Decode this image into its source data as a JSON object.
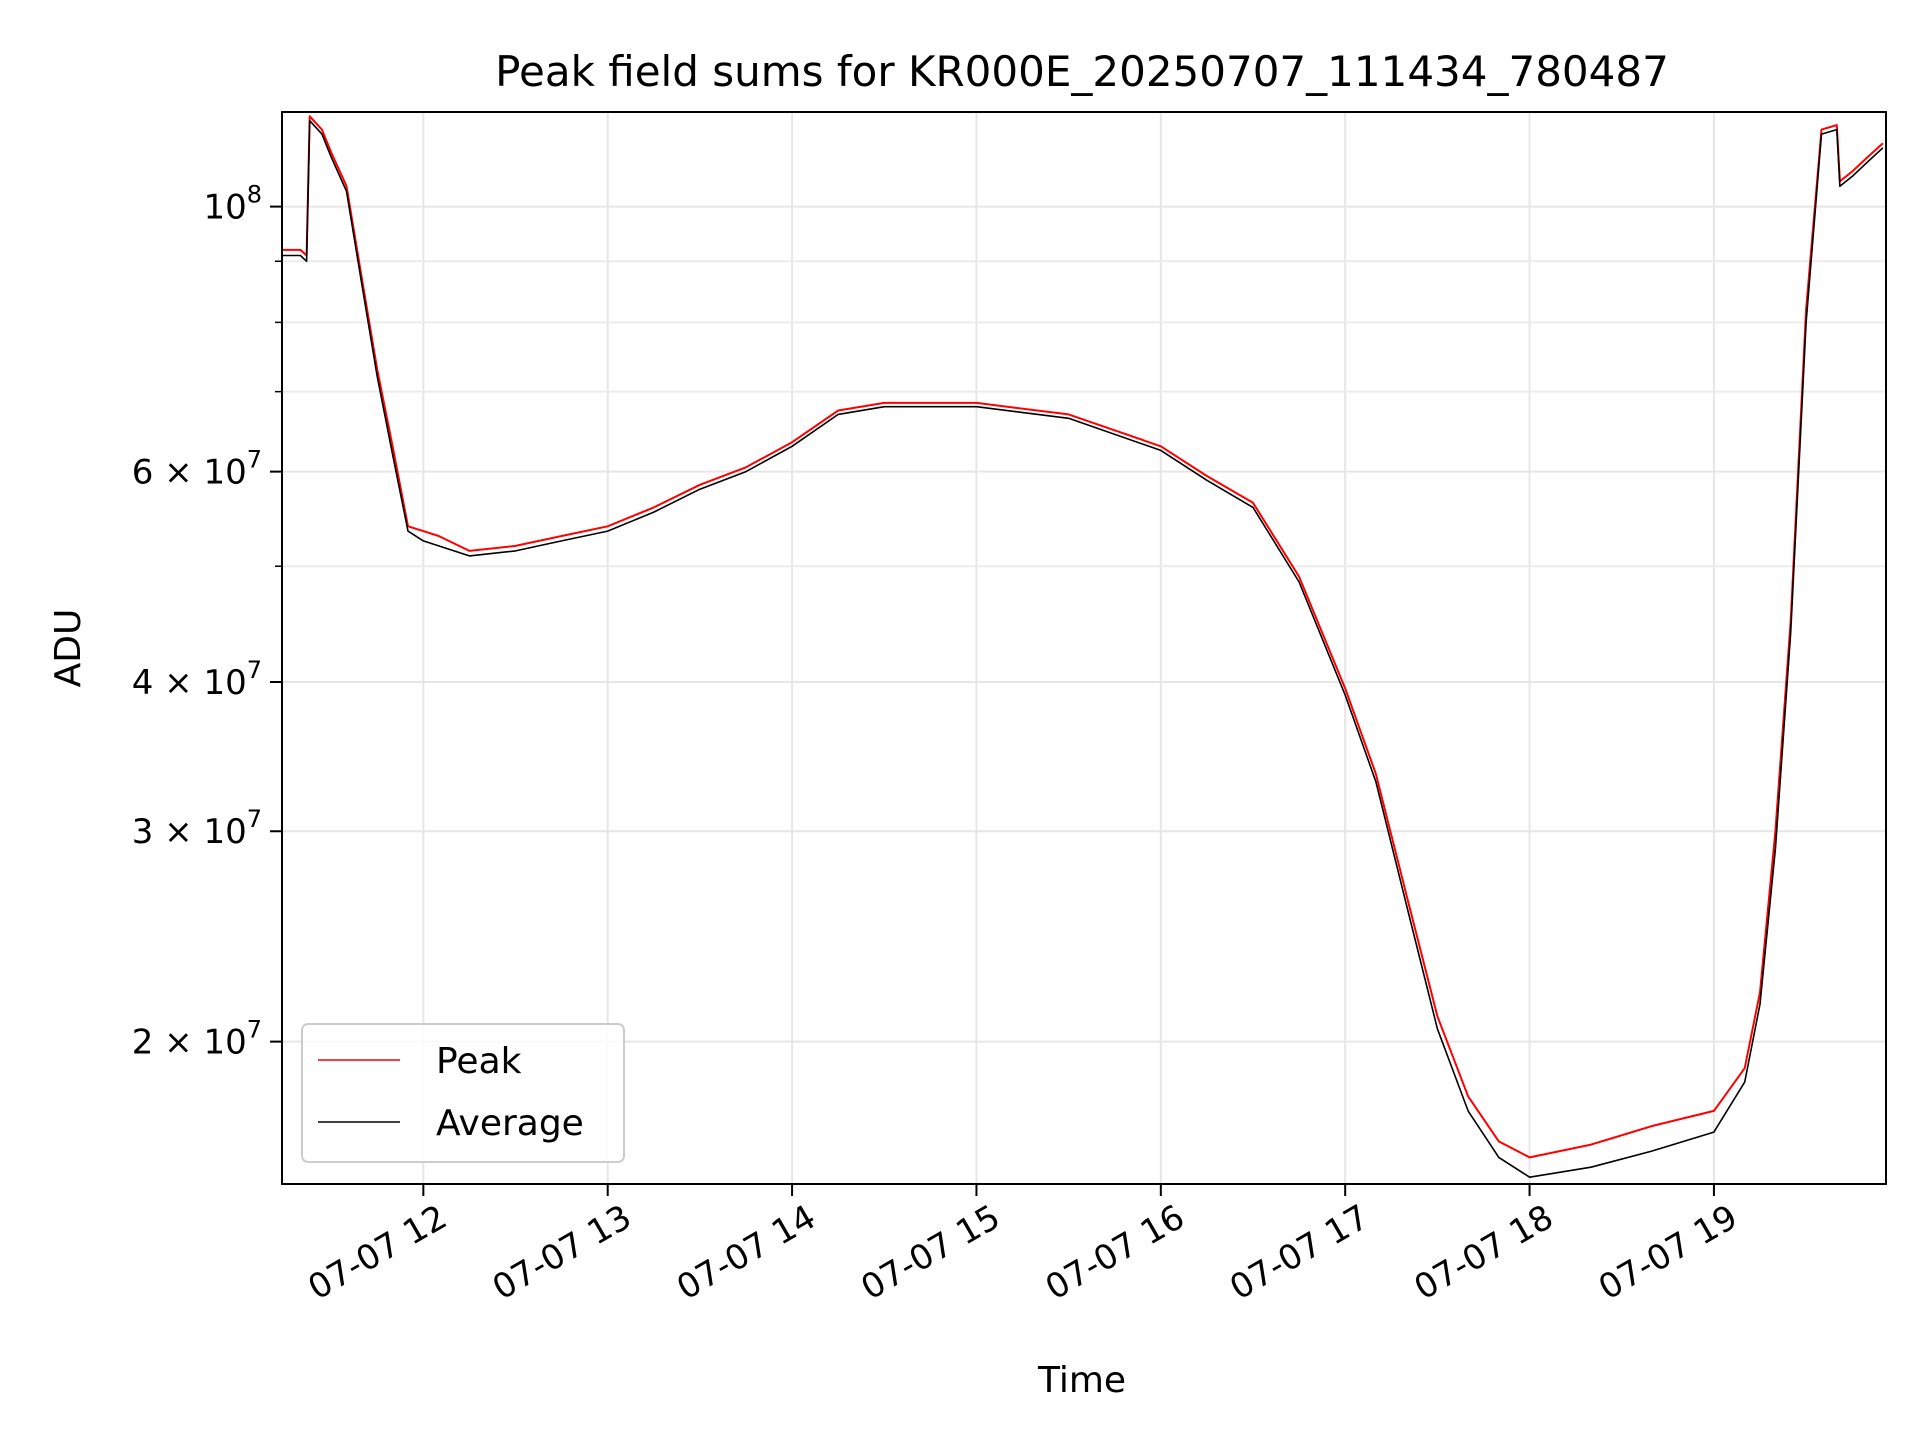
{
  "chart_data": {
    "type": "line",
    "title": "Peak field sums for KR000E_20250707_111434_780487",
    "xlabel": "Time",
    "ylabel": "ADU",
    "yscale": "log",
    "ylim": [
      15200000,
      120000000
    ],
    "xlim": [
      "2025-07-07 11:14",
      "2025-07-07 19:56"
    ],
    "grid": true,
    "legend_position": "lower left",
    "x_ticks": [
      {
        "value": "2025-07-07 12:00",
        "label": "07-07 12"
      },
      {
        "value": "2025-07-07 13:00",
        "label": "07-07 13"
      },
      {
        "value": "2025-07-07 14:00",
        "label": "07-07 14"
      },
      {
        "value": "2025-07-07 15:00",
        "label": "07-07 15"
      },
      {
        "value": "2025-07-07 16:00",
        "label": "07-07 16"
      },
      {
        "value": "2025-07-07 17:00",
        "label": "07-07 17"
      },
      {
        "value": "2025-07-07 18:00",
        "label": "07-07 18"
      },
      {
        "value": "2025-07-07 19:00",
        "label": "07-07 19"
      }
    ],
    "y_ticks": [
      {
        "value": 100000000,
        "base": "10",
        "exp": "8"
      },
      {
        "value": 60000000,
        "base": "6 × 10",
        "exp": "7"
      },
      {
        "value": 40000000,
        "base": "4 × 10",
        "exp": "7"
      },
      {
        "value": 30000000,
        "base": "3 × 10",
        "exp": "7"
      },
      {
        "value": 20000000,
        "base": "2 × 10",
        "exp": "7"
      }
    ],
    "y_minor_ticks": [
      50000000,
      70000000,
      80000000,
      90000000
    ],
    "series": [
      {
        "name": "Peak",
        "color": "#ff0000",
        "x": [
          "2025-07-07 11:14",
          "2025-07-07 11:20",
          "2025-07-07 11:22",
          "2025-07-07 11:23",
          "2025-07-07 11:27",
          "2025-07-07 11:30",
          "2025-07-07 11:35",
          "2025-07-07 11:40",
          "2025-07-07 11:45",
          "2025-07-07 11:50",
          "2025-07-07 11:55",
          "2025-07-07 12:00",
          "2025-07-07 12:05",
          "2025-07-07 12:15",
          "2025-07-07 12:30",
          "2025-07-07 12:45",
          "2025-07-07 13:00",
          "2025-07-07 13:15",
          "2025-07-07 13:30",
          "2025-07-07 13:45",
          "2025-07-07 14:00",
          "2025-07-07 14:15",
          "2025-07-07 14:30",
          "2025-07-07 15:00",
          "2025-07-07 15:30",
          "2025-07-07 16:00",
          "2025-07-07 16:15",
          "2025-07-07 16:30",
          "2025-07-07 16:45",
          "2025-07-07 17:00",
          "2025-07-07 17:10",
          "2025-07-07 17:20",
          "2025-07-07 17:30",
          "2025-07-07 17:40",
          "2025-07-07 17:50",
          "2025-07-07 18:00",
          "2025-07-07 18:20",
          "2025-07-07 18:40",
          "2025-07-07 19:00",
          "2025-07-07 19:10",
          "2025-07-07 19:15",
          "2025-07-07 19:20",
          "2025-07-07 19:25",
          "2025-07-07 19:30",
          "2025-07-07 19:35",
          "2025-07-07 19:40",
          "2025-07-07 19:41",
          "2025-07-07 19:45",
          "2025-07-07 19:50",
          "2025-07-07 19:55"
        ],
        "y": [
          92000000,
          92000000,
          91000000,
          119000000,
          116000000,
          111000000,
          104000000,
          87000000,
          73000000,
          63000000,
          54000000,
          53500000,
          53000000,
          51500000,
          52000000,
          53000000,
          54000000,
          56000000,
          58500000,
          60500000,
          63500000,
          67500000,
          68500000,
          68500000,
          67000000,
          63000000,
          59500000,
          56500000,
          49000000,
          39500000,
          33500000,
          26500000,
          21000000,
          18000000,
          16500000,
          16000000,
          16400000,
          17000000,
          17500000,
          19000000,
          22000000,
          30000000,
          45000000,
          82000000,
          116000000,
          117000000,
          105000000,
          107000000,
          110000000,
          113000000
        ]
      },
      {
        "name": "Average",
        "color": "#000000",
        "x": [
          "2025-07-07 11:14",
          "2025-07-07 11:20",
          "2025-07-07 11:22",
          "2025-07-07 11:23",
          "2025-07-07 11:27",
          "2025-07-07 11:30",
          "2025-07-07 11:35",
          "2025-07-07 11:40",
          "2025-07-07 11:45",
          "2025-07-07 11:50",
          "2025-07-07 11:55",
          "2025-07-07 12:00",
          "2025-07-07 12:05",
          "2025-07-07 12:15",
          "2025-07-07 12:30",
          "2025-07-07 12:45",
          "2025-07-07 13:00",
          "2025-07-07 13:15",
          "2025-07-07 13:30",
          "2025-07-07 13:45",
          "2025-07-07 14:00",
          "2025-07-07 14:15",
          "2025-07-07 14:30",
          "2025-07-07 15:00",
          "2025-07-07 15:30",
          "2025-07-07 16:00",
          "2025-07-07 16:15",
          "2025-07-07 16:30",
          "2025-07-07 16:45",
          "2025-07-07 17:00",
          "2025-07-07 17:10",
          "2025-07-07 17:20",
          "2025-07-07 17:30",
          "2025-07-07 17:40",
          "2025-07-07 17:50",
          "2025-07-07 18:00",
          "2025-07-07 18:20",
          "2025-07-07 18:40",
          "2025-07-07 19:00",
          "2025-07-07 19:10",
          "2025-07-07 19:15",
          "2025-07-07 19:20",
          "2025-07-07 19:25",
          "2025-07-07 19:30",
          "2025-07-07 19:35",
          "2025-07-07 19:40",
          "2025-07-07 19:41",
          "2025-07-07 19:45",
          "2025-07-07 19:50",
          "2025-07-07 19:55"
        ],
        "y": [
          91000000,
          91000000,
          90000000,
          118000000,
          115000000,
          110000000,
          103000000,
          86000000,
          72000000,
          62000000,
          53500000,
          52500000,
          52000000,
          51000000,
          51500000,
          52500000,
          53500000,
          55500000,
          58000000,
          60000000,
          63000000,
          67000000,
          68000000,
          68000000,
          66500000,
          62500000,
          59000000,
          56000000,
          48500000,
          39000000,
          33000000,
          26000000,
          20500000,
          17500000,
          16000000,
          15400000,
          15700000,
          16200000,
          16800000,
          18500000,
          21500000,
          29000000,
          44000000,
          80000000,
          115000000,
          116000000,
          104000000,
          106000000,
          109000000,
          112000000
        ]
      }
    ]
  }
}
